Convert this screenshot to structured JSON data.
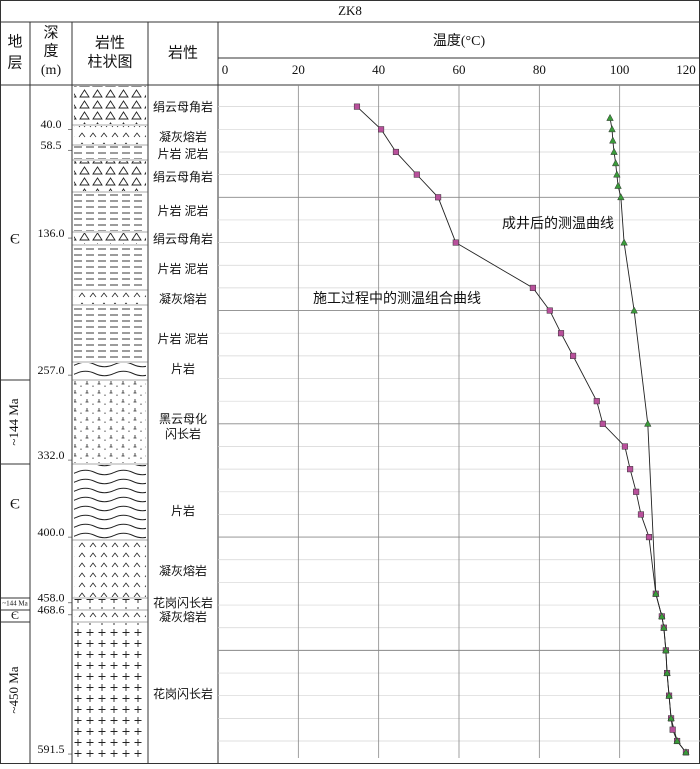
{
  "title": "ZK8",
  "headers": {
    "strata": [
      "地",
      "层"
    ],
    "depth": [
      "深",
      "度",
      "(m)"
    ],
    "column": [
      "岩性",
      "柱状图"
    ],
    "lithology": "岩性"
  },
  "strata": [
    "Є",
    "~144 Ma",
    "Є",
    "~144 Ma",
    "Є",
    "~450 Ma"
  ],
  "lithology": [
    "绢云母角岩",
    "凝灰熔岩",
    "片岩 泥岩",
    "绢云母角岩",
    "片岩 泥岩",
    "绢云母角岩",
    "片岩 泥岩",
    "凝灰熔岩",
    "片岩 泥岩",
    "片岩",
    "黑云母化",
    "闪长岩",
    "片岩",
    "凝灰熔岩",
    "花岗闪长岩",
    "凝灰熔岩",
    "花岗闪长岩"
  ],
  "chart_data": {
    "type": "line",
    "x_label": "温度(°C)",
    "xlim": [
      0,
      120
    ],
    "xticks": [
      0,
      20,
      40,
      60,
      80,
      100,
      120
    ],
    "ylim": [
      0,
      595
    ],
    "yticks": [
      {
        "value": 40,
        "label": "40.0"
      },
      {
        "value": 58.5,
        "label": "58.5"
      },
      {
        "value": 136,
        "label": "136.0"
      },
      {
        "value": 257,
        "label": "257.0"
      },
      {
        "value": 332,
        "label": "332.0"
      },
      {
        "value": 400,
        "label": "400.0"
      },
      {
        "value": 458,
        "label": "458.0"
      },
      {
        "value": 468.6,
        "label": "468.6"
      },
      {
        "value": 591.5,
        "label": "591.5"
      }
    ],
    "y_gridlines": [
      20,
      40,
      60,
      80,
      100,
      120,
      140,
      160,
      180,
      200,
      220,
      240,
      260,
      280,
      300,
      320,
      340,
      360,
      380,
      400,
      420,
      440,
      460,
      480,
      500,
      520,
      540,
      560,
      580
    ],
    "grid": true,
    "series": [
      {
        "name": "施工过程中的测温组合曲线",
        "color": "#b8509b",
        "marker": "square",
        "x": [
          34.6,
          40.6,
          44.3,
          49.5,
          54.8,
          59.2,
          78.4,
          82.6,
          85.4,
          88.4,
          94.3,
          95.8,
          101.3,
          102.6,
          104.1,
          105.3,
          107.3,
          109.0,
          110.5,
          111.0,
          111.5,
          111.8,
          112.3,
          112.8,
          113.2,
          114.3,
          116.5
        ],
        "y": [
          20,
          40,
          60,
          80,
          100,
          140,
          180,
          200,
          220,
          240,
          280,
          300,
          320,
          340,
          360,
          380,
          400,
          450,
          470,
          480,
          500,
          520,
          540,
          560,
          570,
          580,
          590
        ]
      },
      {
        "name": "成井后的测温曲线",
        "color": "#3a9a3a",
        "marker": "triangle",
        "x": [
          97.6,
          98.1,
          98.3,
          98.6,
          99.0,
          99.3,
          99.6,
          100.3,
          101.1,
          103.6,
          107.0,
          109.0,
          110.5,
          111.0,
          111.5,
          111.8,
          112.3,
          112.8,
          114.3,
          116.5
        ],
        "y": [
          30,
          40,
          50,
          60,
          70,
          80,
          90,
          100,
          140,
          200,
          300,
          450,
          470,
          480,
          500,
          520,
          540,
          560,
          580,
          590
        ]
      }
    ]
  }
}
